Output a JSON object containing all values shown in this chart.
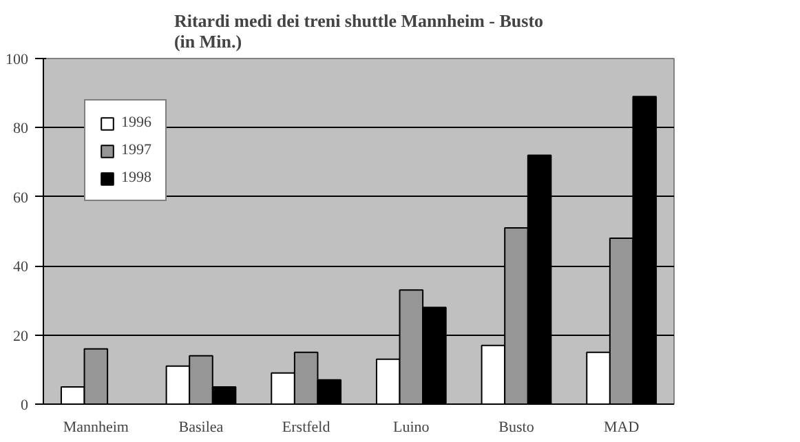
{
  "chart_data": {
    "type": "bar",
    "title": "Ritardi medi dei treni shuttle Mannheim - Busto\n(in Min.)",
    "categories": [
      "Mannheim",
      "Basilea",
      "Erstfeld",
      "Luino",
      "Busto",
      "MAD"
    ],
    "series": [
      {
        "name": "1996",
        "color": "#ffffff",
        "values": [
          5,
          11,
          9,
          13,
          17,
          15
        ]
      },
      {
        "name": "1997",
        "color": "#969696",
        "values": [
          16,
          14,
          15,
          33,
          51,
          48
        ]
      },
      {
        "name": "1998",
        "color": "#000000",
        "values": [
          null,
          5,
          7,
          28,
          72,
          89
        ]
      }
    ],
    "ylim": [
      0,
      100
    ],
    "yticks": [
      0,
      20,
      40,
      60,
      80,
      100
    ],
    "grid": "y",
    "legend": "top left"
  }
}
